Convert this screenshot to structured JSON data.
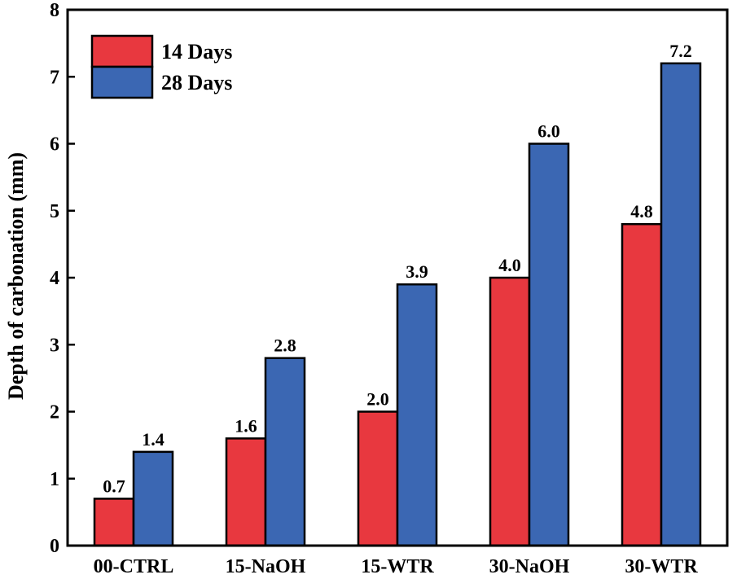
{
  "chart_data": {
    "type": "bar",
    "title": "",
    "xlabel": "",
    "ylabel": "Depth of carbonation (mm)",
    "ylim": [
      0,
      8
    ],
    "yticks": [
      0,
      1,
      2,
      3,
      4,
      5,
      6,
      7,
      8
    ],
    "categories": [
      "00-CTRL",
      "15-NaOH",
      "15-WTR",
      "30-NaOH",
      "30-WTR"
    ],
    "series": [
      {
        "name": "14 Days",
        "color": "#e8383f",
        "values": [
          0.7,
          1.6,
          2.0,
          4.0,
          4.8
        ],
        "labels": [
          "0.7",
          "1.6",
          "2.0",
          "4.0",
          "4.8"
        ]
      },
      {
        "name": "28 Days",
        "color": "#3b67b3",
        "values": [
          1.4,
          2.8,
          3.9,
          6.0,
          7.2
        ],
        "labels": [
          "1.4",
          "2.8",
          "3.9",
          "6.0",
          "7.2"
        ]
      }
    ],
    "legend_position": "top-left",
    "grid": false
  }
}
